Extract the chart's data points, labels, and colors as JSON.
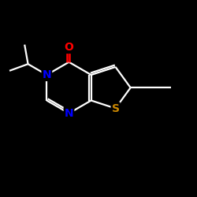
{
  "background_color": "#000000",
  "bond_color": "#ffffff",
  "atom_colors": {
    "O": "#ff0000",
    "N": "#0000ff",
    "S": "#cc8800",
    "C": "#ffffff"
  },
  "figsize": [
    2.5,
    2.5
  ],
  "dpi": 100,
  "lw": 1.6
}
